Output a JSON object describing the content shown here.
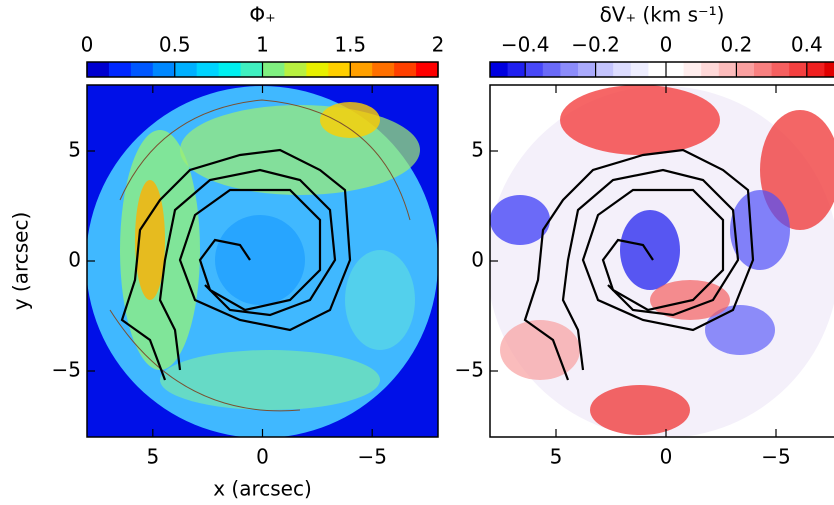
{
  "chart_data": [
    {
      "type": "heatmap",
      "colorbar_label": "Φ₊",
      "clim": [
        0,
        2
      ],
      "cticks": [
        0,
        0.5,
        1,
        1.5,
        2
      ],
      "colormap": [
        "#0000d0",
        "#0028ff",
        "#0058ff",
        "#0088ff",
        "#00b0ff",
        "#00d4ff",
        "#00f0f0",
        "#40f0c0",
        "#80f080",
        "#b8f040",
        "#e8f000",
        "#ffd000",
        "#ffa000",
        "#ff7000",
        "#ff4000",
        "#ff0000"
      ],
      "xlim": [
        8,
        -8
      ],
      "ylim": [
        -8,
        8
      ],
      "xticks": [
        5,
        0,
        {
          "value": -5,
          "label": "−5"
        }
      ],
      "yticks": [
        5,
        0,
        {
          "value": -5,
          "label": "−5"
        }
      ],
      "xlabel": "x (arcsec)",
      "ylabel": "y (arcsec)"
    },
    {
      "type": "heatmap",
      "colorbar_label": "δV₊ (km s⁻¹)",
      "clim": [
        -0.5,
        0.5
      ],
      "cticks": [
        {
          "value": -0.4,
          "label": "−0.4"
        },
        {
          "value": -0.2,
          "label": "−0.2"
        },
        0,
        0.2,
        0.4
      ],
      "colormap": [
        "#0000e0",
        "#2020f0",
        "#4848f8",
        "#6a6af8",
        "#8c8cfa",
        "#aaaafc",
        "#c4c4fd",
        "#dcdcfe",
        "#eeeeff",
        "#ffffff",
        "#ffffff",
        "#ffeeee",
        "#fed8d8",
        "#fcbcbc",
        "#faa0a0",
        "#f88080",
        "#f66060",
        "#f44040",
        "#f02020",
        "#e00000"
      ],
      "xlim": [
        8,
        -8
      ],
      "ylim": [
        -8,
        8
      ],
      "xticks": [
        5,
        0,
        {
          "value": -5,
          "label": "−5"
        }
      ],
      "yticks": [
        5,
        0,
        {
          "value": -5,
          "label": "−5"
        }
      ]
    }
  ]
}
